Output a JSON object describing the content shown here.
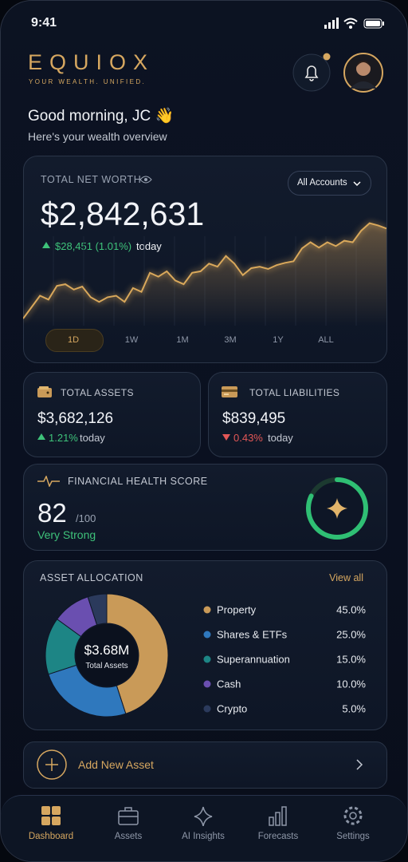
{
  "status_bar": {
    "time": "9:41"
  },
  "header": {
    "brand": "EQUIOX",
    "tagline": "YOUR WEALTH. UNIFIED."
  },
  "greeting": {
    "title": "Good morning, JC 👋",
    "subtitle": "Here's your wealth overview"
  },
  "net_worth": {
    "label": "TOTAL NET WORTH",
    "selector": "All Accounts",
    "value": "$2,842,631",
    "change": "$28,451 (1.01%)",
    "change_suffix": "today",
    "ranges": [
      "1D",
      "1W",
      "1M",
      "3M",
      "1Y",
      "ALL"
    ]
  },
  "assets": {
    "label": "TOTAL ASSETS",
    "value": "$3,682,126",
    "change": "1.21%",
    "change_suffix": "today"
  },
  "liabilities": {
    "label": "TOTAL LIABILITIES",
    "value": "$839,495",
    "change": "0.43%",
    "change_suffix": "today"
  },
  "health": {
    "label": "FINANCIAL HEALTH SCORE",
    "score": 82,
    "score_max": {
      "value": 100,
      "label": "/100"
    },
    "rating": "Very Strong"
  },
  "chart_data": [
    {
      "type": "line",
      "color": "#d9a85b",
      "ylim": [
        0,
        140
      ],
      "values": [
        5,
        20,
        35,
        30,
        48,
        50,
        43,
        47,
        33,
        27,
        33,
        35,
        27,
        45,
        40,
        65,
        60,
        67,
        55,
        50,
        65,
        67,
        77,
        73,
        87,
        77,
        62,
        71,
        73,
        70,
        75,
        78,
        80,
        97,
        105,
        98,
        105,
        100,
        107,
        105,
        120,
        130,
        127,
        123
      ]
    },
    {
      "type": "pie",
      "title": "ASSET ALLOCATION",
      "link": "View all",
      "center_value": "$3.68M",
      "center_label": "Total Assets",
      "categories": [
        "Property",
        "Shares & ETFs",
        "Superannuation",
        "Cash",
        "Crypto"
      ],
      "values": [
        45,
        25,
        15,
        10,
        5
      ],
      "value_labels": [
        "45.0%",
        "25.0%",
        "15.0%",
        "10.0%",
        "5.0%"
      ],
      "colors": [
        "#c99a58",
        "#2f78bd",
        "#1d8585",
        "#6a4fb0",
        "#2b3a5c"
      ]
    }
  ],
  "add_asset": {
    "label": "Add New Asset"
  },
  "nav": {
    "items": [
      "Dashboard",
      "Assets",
      "AI Insights",
      "Forecasts",
      "Settings"
    ]
  }
}
